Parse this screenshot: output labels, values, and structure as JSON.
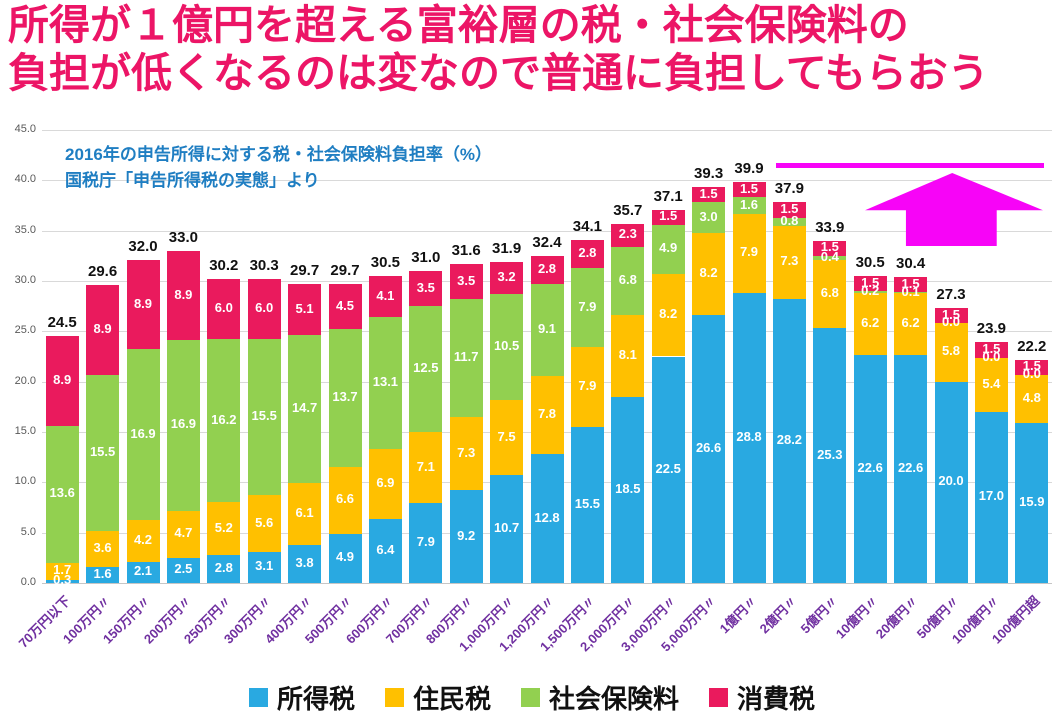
{
  "title": {
    "line1": "所得が１億円を超える富裕層の税・社会保険料の",
    "line2": "負担が低くなるのは変なので普通に負担してもらおう"
  },
  "annotation": {
    "line1": "2016年の申告所得に対する税・社会保険料負担率（%）",
    "line2": "国税庁「申告所得税の実態」より"
  },
  "chart_data": {
    "type": "bar",
    "stacked": true,
    "title": "2016年の申告所得に対する税・社会保険料負担率（%）",
    "source": "国税庁「申告所得税の実態」より",
    "ylim": [
      0,
      45
    ],
    "ytick_step": 5,
    "grid": true,
    "legend_position": "bottom",
    "categories": [
      "70万円以下",
      "100万円〃",
      "150万円〃",
      "200万円〃",
      "250万円〃",
      "300万円〃",
      "400万円〃",
      "500万円〃",
      "600万円〃",
      "700万円〃",
      "800万円〃",
      "1,000万円〃",
      "1,200万円〃",
      "1,500万円〃",
      "2,000万円〃",
      "3,000万円〃",
      "5,000万円〃",
      "1億円〃",
      "2億円〃",
      "5億円〃",
      "10億円〃",
      "20億円〃",
      "50億円〃",
      "100億円〃",
      "100億円超"
    ],
    "series": [
      {
        "name": "所得税",
        "color": "#29A9E1",
        "values": [
          0.3,
          1.6,
          2.1,
          2.5,
          2.8,
          3.1,
          3.8,
          4.9,
          6.4,
          7.9,
          9.2,
          10.7,
          12.8,
          15.5,
          18.5,
          22.5,
          26.6,
          28.8,
          28.2,
          25.3,
          22.6,
          22.6,
          20.0,
          17.0,
          15.9
        ]
      },
      {
        "name": "住民税",
        "color": "#FFC000",
        "values": [
          1.7,
          3.6,
          4.2,
          4.7,
          5.2,
          5.6,
          6.1,
          6.6,
          6.9,
          7.1,
          7.3,
          7.5,
          7.8,
          7.9,
          8.1,
          8.2,
          8.2,
          7.9,
          7.3,
          6.8,
          6.2,
          6.2,
          5.8,
          5.4,
          4.8
        ]
      },
      {
        "name": "社会保険料",
        "color": "#92D050",
        "values": [
          13.6,
          15.5,
          16.9,
          16.9,
          16.2,
          15.5,
          14.7,
          13.7,
          13.1,
          12.5,
          11.7,
          10.5,
          9.1,
          7.9,
          6.8,
          4.9,
          3.0,
          1.6,
          0.8,
          0.4,
          0.2,
          0.1,
          0.0,
          0.0,
          0.0
        ]
      },
      {
        "name": "消費税",
        "color": "#EA1A5D",
        "values": [
          8.9,
          8.9,
          8.9,
          8.9,
          6.0,
          6.0,
          5.1,
          4.5,
          4.1,
          3.5,
          3.5,
          3.2,
          2.8,
          2.8,
          2.3,
          1.5,
          1.5,
          1.5,
          1.5,
          1.5,
          1.5,
          1.5,
          1.5,
          1.5,
          1.5
        ]
      }
    ],
    "totals": [
      24.5,
      29.6,
      32.0,
      33.0,
      30.2,
      30.3,
      29.7,
      29.7,
      30.5,
      31.0,
      31.6,
      31.9,
      32.4,
      34.1,
      35.7,
      37.1,
      39.3,
      39.9,
      37.9,
      33.9,
      30.5,
      30.4,
      27.3,
      23.9,
      22.2
    ]
  },
  "legend": [
    {
      "label": "所得税",
      "color": "#29A9E1"
    },
    {
      "label": "住民税",
      "color": "#FFC000"
    },
    {
      "label": "社会保険料",
      "color": "#92D050"
    },
    {
      "label": "消費税",
      "color": "#EA1A5D"
    }
  ],
  "colors": {
    "title": "#EC1566",
    "annotation": "#1F7EC2",
    "x_labels": "#7030A0",
    "y_labels": "#595959",
    "gridline": "#D9D9D9",
    "axis_line": "#C6C6C6",
    "arrow": "#F704F7"
  }
}
